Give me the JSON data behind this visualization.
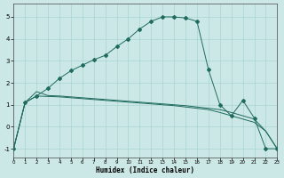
{
  "xlabel": "Humidex (Indice chaleur)",
  "background_color": "#cce8e6",
  "grid_color": "#a8d4d0",
  "line_color": "#1f6b5e",
  "xlim": [
    0,
    23
  ],
  "ylim": [
    -1.4,
    5.6
  ],
  "yticks": [
    -1,
    0,
    1,
    2,
    3,
    4,
    5
  ],
  "xticks": [
    0,
    1,
    2,
    3,
    4,
    5,
    6,
    7,
    8,
    9,
    10,
    11,
    12,
    13,
    14,
    15,
    16,
    17,
    18,
    19,
    20,
    21,
    22,
    23
  ],
  "curve1_x": [
    0,
    1,
    2,
    3,
    4,
    5,
    6,
    7,
    8,
    9,
    10,
    11,
    12,
    13,
    14,
    15,
    16,
    17,
    18,
    19,
    20,
    21,
    22,
    23
  ],
  "curve1_y": [
    -1.0,
    1.1,
    1.4,
    1.75,
    2.2,
    2.55,
    2.8,
    3.05,
    3.25,
    3.65,
    4.0,
    4.45,
    4.8,
    5.0,
    5.0,
    4.95,
    4.8,
    2.6,
    1.0,
    0.5,
    1.2,
    0.4,
    -1.0,
    -1.0
  ],
  "curve2_x": [
    0,
    1,
    2,
    3,
    4,
    5,
    6,
    7,
    8,
    9,
    10,
    11,
    12,
    13,
    14,
    15,
    16,
    17,
    18,
    19,
    20,
    21,
    22,
    23
  ],
  "curve2_y": [
    -1.0,
    1.1,
    1.4,
    1.38,
    1.36,
    1.32,
    1.28,
    1.24,
    1.2,
    1.16,
    1.12,
    1.08,
    1.04,
    1.0,
    0.96,
    0.9,
    0.84,
    0.78,
    0.65,
    0.5,
    0.35,
    0.2,
    -0.2,
    -1.0
  ],
  "curve3_x": [
    0,
    1,
    2,
    3,
    4,
    5,
    6,
    7,
    8,
    9,
    10,
    11,
    12,
    13,
    14,
    15,
    16,
    17,
    18,
    19,
    20,
    21,
    22,
    23
  ],
  "curve3_y": [
    -1.0,
    1.1,
    1.6,
    1.42,
    1.4,
    1.36,
    1.32,
    1.28,
    1.24,
    1.2,
    1.16,
    1.12,
    1.08,
    1.04,
    1.0,
    0.96,
    0.9,
    0.84,
    0.78,
    0.65,
    0.5,
    0.35,
    -0.2,
    -1.0
  ]
}
